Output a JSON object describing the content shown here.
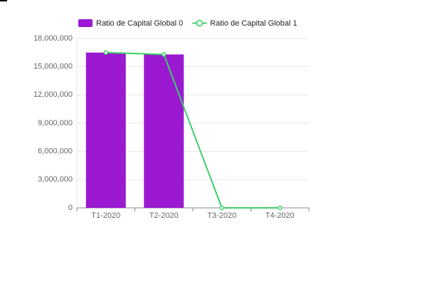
{
  "chart_data": {
    "type": "bar",
    "categories": [
      "T1-2020",
      "T2-2020",
      "T3-2020",
      "T4-2020"
    ],
    "series": [
      {
        "name": "Ratio de Capital Global 0",
        "type": "bar",
        "color": "#9b19d0",
        "values": [
          16500000,
          16300000,
          0,
          0
        ]
      },
      {
        "name": "Ratio de Capital Global 1",
        "type": "line",
        "color": "#3ccf6a",
        "values": [
          16500000,
          16300000,
          0,
          0
        ]
      }
    ],
    "ylim": [
      0,
      18000000
    ],
    "yticks": [
      {
        "value": 0,
        "label": "0"
      },
      {
        "value": 3000000,
        "label": "3,000,000"
      },
      {
        "value": 6000000,
        "label": "6,000,000"
      },
      {
        "value": 9000000,
        "label": "9,000,000"
      },
      {
        "value": 12000000,
        "label": "12,000,000"
      },
      {
        "value": 15000000,
        "label": "15,000,000"
      },
      {
        "value": 18000000,
        "label": "18,000,000"
      }
    ],
    "grid": true
  }
}
